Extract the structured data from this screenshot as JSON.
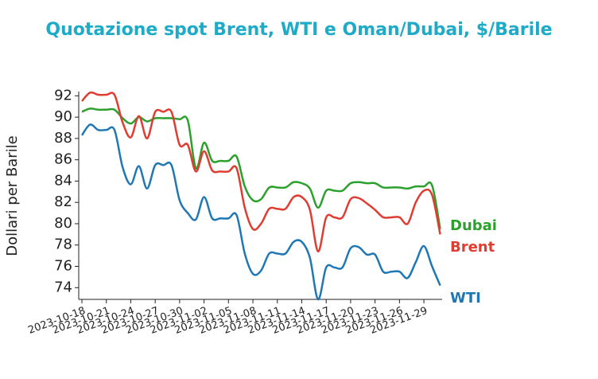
{
  "chart_data": {
    "type": "line",
    "title": "Quotazione spot Brent, WTI e Oman/Dubai, $/Barile",
    "y_label": "Dollari per Barile",
    "x": [
      "2023-10-18",
      "2023-10-19",
      "2023-10-20",
      "2023-10-21",
      "2023-10-22",
      "2023-10-23",
      "2023-10-24",
      "2023-10-25",
      "2023-10-26",
      "2023-10-27",
      "2023-10-28",
      "2023-10-29",
      "2023-10-30",
      "2023-10-31",
      "2023-11-01",
      "2023-11-02",
      "2023-11-03",
      "2023-11-04",
      "2023-11-05",
      "2023-11-06",
      "2023-11-07",
      "2023-11-08",
      "2023-11-09",
      "2023-11-10",
      "2023-11-11",
      "2023-11-12",
      "2023-11-13",
      "2023-11-14",
      "2023-11-15",
      "2023-11-16",
      "2023-11-17",
      "2023-11-18",
      "2023-11-19",
      "2023-11-20",
      "2023-11-21",
      "2023-11-22",
      "2023-11-23",
      "2023-11-24",
      "2023-11-25",
      "2023-11-26",
      "2023-11-27",
      "2023-11-28",
      "2023-11-29",
      "2023-11-30",
      "2023-12-01"
    ],
    "series": [
      {
        "name": "Dubai",
        "color": "#2ca02c",
        "values": [
          90.5,
          90.8,
          90.7,
          90.7,
          90.7,
          89.9,
          89.4,
          90.0,
          89.6,
          89.9,
          89.9,
          89.9,
          89.8,
          89.7,
          85.2,
          87.6,
          85.9,
          85.9,
          85.9,
          86.3,
          83.5,
          82.2,
          82.3,
          83.4,
          83.4,
          83.4,
          83.9,
          83.8,
          83.3,
          81.5,
          83.1,
          83.1,
          83.1,
          83.8,
          83.9,
          83.8,
          83.8,
          83.4,
          83.4,
          83.4,
          83.3,
          83.5,
          83.5,
          83.6,
          79.5
        ]
      },
      {
        "name": "Brent",
        "color": "#e03c31",
        "values": [
          91.5,
          92.3,
          92.1,
          92.1,
          92.1,
          89.5,
          88.1,
          90.1,
          88.0,
          90.5,
          90.5,
          90.5,
          87.4,
          87.4,
          84.9,
          86.8,
          85.0,
          84.9,
          84.9,
          85.2,
          81.5,
          79.5,
          80.0,
          81.4,
          81.4,
          81.4,
          82.5,
          82.5,
          81.3,
          77.4,
          80.6,
          80.6,
          80.6,
          82.3,
          82.4,
          81.9,
          81.3,
          80.6,
          80.6,
          80.6,
          80.0,
          82.0,
          83.1,
          82.7,
          79.0
        ]
      },
      {
        "name": "WTI",
        "color": "#1f77b4",
        "values": [
          88.3,
          89.3,
          88.8,
          88.8,
          88.8,
          85.3,
          83.7,
          85.4,
          83.3,
          85.5,
          85.5,
          85.5,
          82.2,
          81.0,
          80.4,
          82.5,
          80.5,
          80.5,
          80.5,
          80.8,
          77.2,
          75.3,
          75.6,
          77.2,
          77.2,
          77.2,
          78.3,
          78.3,
          76.8,
          72.9,
          75.9,
          75.9,
          75.9,
          77.7,
          77.8,
          77.1,
          77.1,
          75.5,
          75.5,
          75.5,
          74.9,
          76.4,
          77.9,
          76.0,
          74.2
        ]
      }
    ],
    "xticks": [
      "2023-10-18",
      "2023-10-21",
      "2023-10-24",
      "2023-10-27",
      "2023-10-30",
      "2023-11-02",
      "2023-11-05",
      "2023-11-08",
      "2023-11-11",
      "2023-11-14",
      "2023-11-17",
      "2023-11-20",
      "2023-11-23",
      "2023-11-26",
      "2023-11-29"
    ],
    "ylim": [
      72.9,
      92.4
    ],
    "yticks": [
      74,
      76,
      78,
      80,
      82,
      84,
      86,
      88,
      90,
      92
    ]
  }
}
